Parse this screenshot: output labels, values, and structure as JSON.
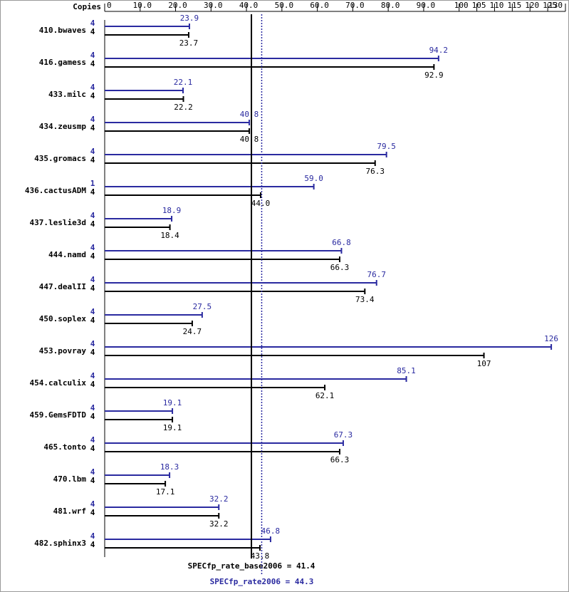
{
  "chart_data": {
    "type": "bar",
    "axis_label": "Copies",
    "categories": [
      "410.bwaves",
      "416.gamess",
      "433.milc",
      "434.zeusmp",
      "435.gromacs",
      "436.cactusADM",
      "437.leslie3d",
      "444.namd",
      "447.dealII",
      "450.soplex",
      "453.povray",
      "454.calculix",
      "459.GemsFDTD",
      "465.tonto",
      "470.lbm",
      "481.wrf",
      "482.sphinx3"
    ],
    "series": [
      {
        "name": "SPECfp_rate2006",
        "color": "#2a2aa0",
        "copies": [
          4,
          4,
          4,
          4,
          4,
          1,
          4,
          4,
          4,
          4,
          4,
          4,
          4,
          4,
          4,
          4,
          4
        ],
        "values": [
          23.9,
          94.2,
          22.1,
          40.8,
          79.5,
          59.0,
          18.9,
          66.8,
          76.7,
          27.5,
          126,
          85.1,
          19.1,
          67.3,
          18.3,
          32.2,
          46.8
        ],
        "value_labels": [
          "23.9",
          "94.2",
          "22.1",
          "40.8",
          "79.5",
          "59.0",
          "18.9",
          "66.8",
          "76.7",
          "27.5",
          "126",
          "85.1",
          "19.1",
          "67.3",
          "18.3",
          "32.2",
          "46.8"
        ]
      },
      {
        "name": "SPECfp_rate_base2006",
        "color": "#000000",
        "copies": [
          4,
          4,
          4,
          4,
          4,
          4,
          4,
          4,
          4,
          4,
          4,
          4,
          4,
          4,
          4,
          4,
          4
        ],
        "values": [
          23.7,
          92.9,
          22.2,
          40.8,
          76.3,
          44.0,
          18.4,
          66.3,
          73.4,
          24.7,
          107,
          62.1,
          19.1,
          66.3,
          17.1,
          32.2,
          43.8
        ],
        "value_labels": [
          "23.7",
          "92.9",
          "22.2",
          "40.8",
          "76.3",
          "44.0",
          "18.4",
          "66.3",
          "73.4",
          "24.7",
          "107",
          "62.1",
          "19.1",
          "66.3",
          "17.1",
          "32.2",
          "43.8"
        ]
      }
    ],
    "reference_lines": [
      {
        "label": "SPECfp_rate_base2006 = 41.4",
        "value": 41.4,
        "color": "#000000",
        "style": "solid"
      },
      {
        "label": "SPECfp_rate2006 = 44.3",
        "value": 44.3,
        "color": "#2a2aa0",
        "style": "dotted"
      }
    ],
    "xlim": [
      0,
      130
    ],
    "xticks": [
      0,
      {
        "value": 10,
        "label": "10.0"
      },
      {
        "value": 20,
        "label": "20.0"
      },
      {
        "value": 30,
        "label": "30.0"
      },
      {
        "value": 40,
        "label": "40.0"
      },
      {
        "value": 50,
        "label": "50.0"
      },
      {
        "value": 60,
        "label": "60.0"
      },
      {
        "value": 70,
        "label": "70.0"
      },
      {
        "value": 80,
        "label": "80.0"
      },
      {
        "value": 90,
        "label": "90.0"
      },
      100,
      105,
      110,
      115,
      120,
      125,
      130
    ]
  }
}
